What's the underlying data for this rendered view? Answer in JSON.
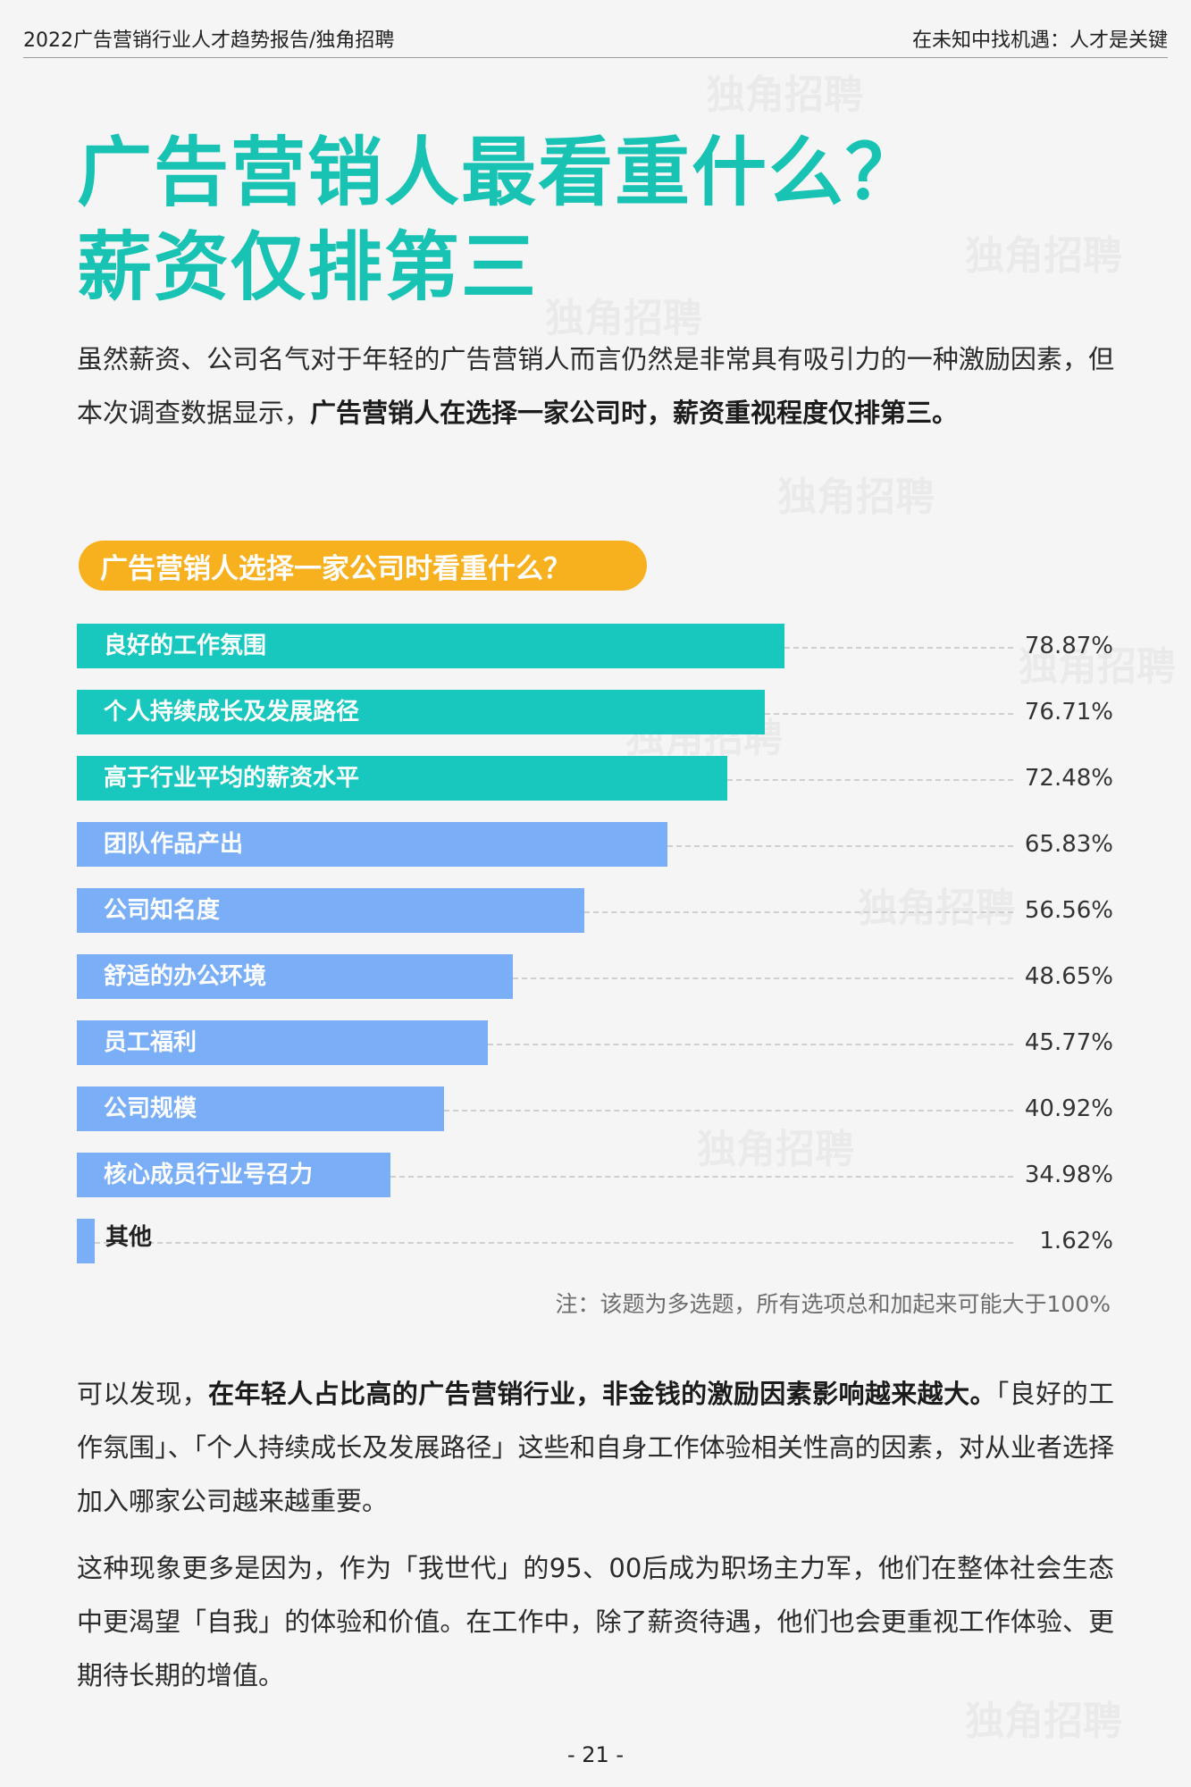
{
  "header": {
    "left": "2022广告营销行业人才趋势报告/独角招聘",
    "right": "在未知中找机遇：人才是关键"
  },
  "watermark": "独角招聘",
  "title": {
    "line1": "广告营销人最看重什么？",
    "line2": "薪资仅排第三"
  },
  "intro": {
    "normal": "虽然薪资、公司名气对于年轻的广告营销人而言仍然是非常具有吸引力的一种激励因素，但本次调查数据显示，",
    "bold": "广告营销人在选择一家公司时，薪资重视程度仅排第三。"
  },
  "chart_pill": "广告营销人选择一家公司时看重什么？",
  "colors": {
    "teal": "#18c8be",
    "blue": "#7aaef6",
    "title_teal": "#18c3b4",
    "pill_orange": "#f7b01e"
  },
  "chart_data": {
    "type": "bar",
    "orientation": "horizontal",
    "title": "广告营销人选择一家公司时看重什么？",
    "categories": [
      "良好的工作氛围",
      "个人持续成长及发展路径",
      "高于行业平均的薪资水平",
      "团队作品产出",
      "公司知名度",
      "舒适的办公环境",
      "员工福利",
      "公司规模",
      "核心成员行业号召力",
      "其他"
    ],
    "values": [
      78.87,
      76.71,
      72.48,
      65.83,
      56.56,
      48.65,
      45.77,
      40.92,
      34.98,
      1.62
    ],
    "value_labels": [
      "78.87%",
      "76.71%",
      "72.48%",
      "65.83%",
      "56.56%",
      "48.65%",
      "45.77%",
      "40.92%",
      "34.98%",
      "1.62%"
    ],
    "highlight": [
      "teal",
      "teal",
      "teal",
      "blue",
      "blue",
      "blue",
      "blue",
      "blue",
      "blue",
      "blue"
    ],
    "xlim": [
      0,
      100
    ],
    "grid": false,
    "note": "注：该题为多选题，所有选项总和加起来可能大于100%"
  },
  "para1": {
    "normal1": "可以发现，",
    "bold": "在年轻人占比高的广告营销行业，非金钱的激励因素影响越来越大。",
    "normal2": "「良好的工作氛围」、「个人持续成长及发展路径」这些和自身工作体验相关性高的因素，对从业者选择加入哪家公司越来越重要。"
  },
  "para2": "这种现象更多是因为，作为「我世代」的95、00后成为职场主力军，他们在整体社会生态中更渴望「自我」的体验和价值。在工作中，除了薪资待遇，他们也会更重视工作体验、更期待长期的增值。",
  "page_number": "- 21 -"
}
